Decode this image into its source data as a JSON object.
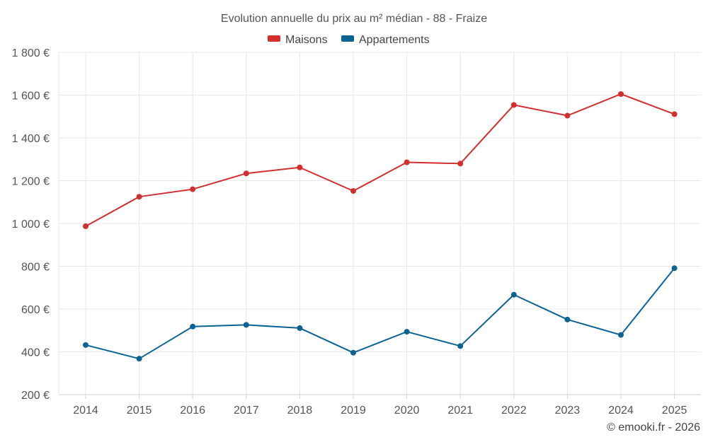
{
  "chart_data": {
    "type": "line",
    "title": "Evolution annuelle du prix au m² médian - 88 - Fraize",
    "categories": [
      "2014",
      "2015",
      "2016",
      "2017",
      "2018",
      "2019",
      "2020",
      "2021",
      "2022",
      "2023",
      "2024",
      "2025"
    ],
    "y_ticks": [
      200,
      400,
      600,
      800,
      1000,
      1200,
      1400,
      1600,
      1800
    ],
    "y_tick_labels": [
      "200 €",
      "400 €",
      "600 €",
      "800 €",
      "1 000 €",
      "1 200 €",
      "1 400 €",
      "1 600 €",
      "1 800 €"
    ],
    "ylim": [
      200,
      1800
    ],
    "grid": true,
    "legend_position": "top-center",
    "series": [
      {
        "name": "Maisons",
        "color": "#d32f2f",
        "values": [
          987,
          1125,
          1160,
          1234,
          1262,
          1152,
          1286,
          1280,
          1554,
          1504,
          1605,
          1511
        ]
      },
      {
        "name": "Appartements",
        "color": "#0b6394",
        "values": [
          432,
          368,
          518,
          526,
          511,
          396,
          494,
          427,
          667,
          551,
          479,
          791
        ]
      }
    ],
    "credit": "© emooki.fr - 2026"
  }
}
